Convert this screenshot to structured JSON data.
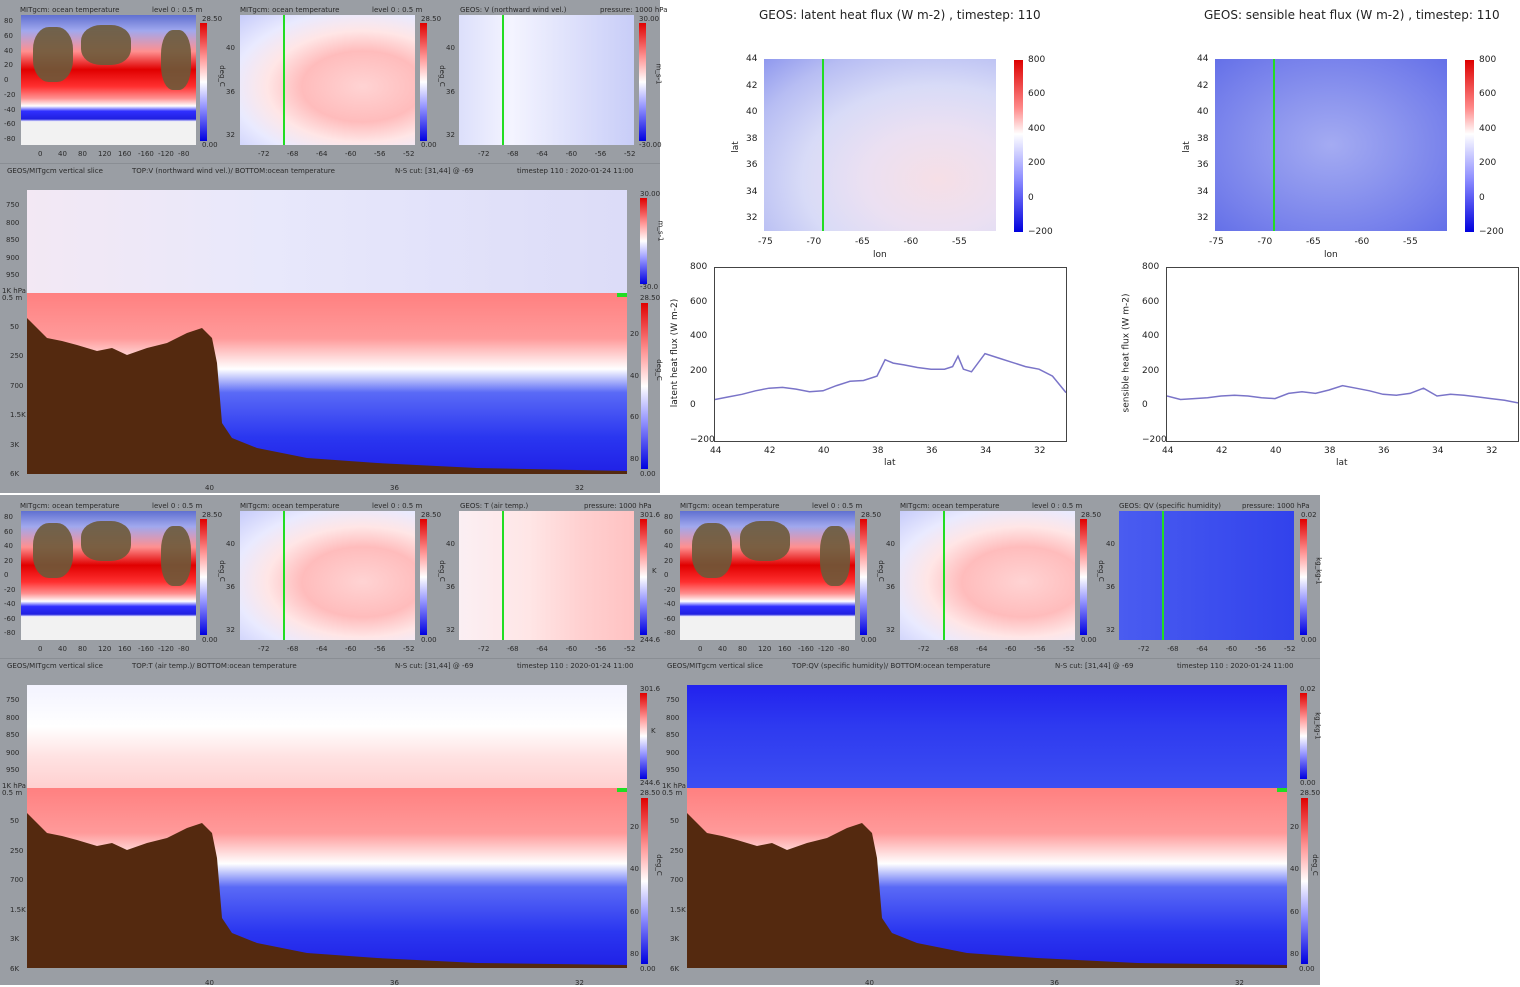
{
  "panels": {
    "top_left": {
      "map1": {
        "title": "MITgcm: ocean temperature",
        "level": "level 0 : 0.5 m",
        "cmax": "28.50",
        "cmin": "0.00",
        "unit": "deg_C",
        "yticks": [
          "80",
          "60",
          "40",
          "20",
          "0",
          "-20",
          "-40",
          "-60",
          "-80"
        ],
        "xticks": [
          "0",
          "40",
          "80",
          "120",
          "160",
          "-160",
          "-120",
          "-80"
        ]
      },
      "map2": {
        "title": "MITgcm: ocean temperature",
        "level": "level 0 : 0.5 m",
        "cmax": "28.50",
        "cmin": "0.00",
        "unit": "deg_C",
        "yticks": [
          "40",
          "36",
          "32"
        ],
        "xticks": [
          "-72",
          "-68",
          "-64",
          "-60",
          "-56",
          "-52"
        ]
      },
      "map3": {
        "title": "GEOS: V (northward wind vel.)",
        "level": "pressure: 1000 hPa",
        "cmax": "30.00",
        "cmin": "-30.00",
        "unit": "m_s-1",
        "yticks": [
          "40",
          "36",
          "32"
        ],
        "xticks": [
          "-72",
          "-68",
          "-64",
          "-60",
          "-56",
          "-52"
        ]
      },
      "slice": {
        "left": "GEOS/MITgcm vertical slice",
        "mid": "TOP:V (northward wind vel.)/ BOTTOM:ocean temperature",
        "cut": "N-S cut: [31,44] @ -69",
        "time": "timestep 110 : 2020-01-24 11:00",
        "ptick": [
          "750",
          "800",
          "850",
          "900",
          "950"
        ],
        "ptop": "1K hPa",
        "dtop": "0.5 m",
        "dticks": [
          "50",
          "250",
          "700",
          "1.5K",
          "3K",
          "6K"
        ],
        "xticks": [
          "40",
          "36",
          "32"
        ],
        "acmax": "30.00",
        "acmin": "-30.0",
        "aunit": "m_s-1",
        "ocmax": "28.50",
        "ocmin": "0.00",
        "ounit": "deg_C",
        "ocbticks": [
          "20",
          "40",
          "60",
          "80"
        ]
      }
    },
    "bottom_left": {
      "map1": {
        "title": "MITgcm: ocean temperature",
        "level": "level 0 : 0.5 m",
        "cmax": "28.50",
        "cmin": "0.00",
        "unit": "deg_C",
        "yticks": [
          "80",
          "60",
          "40",
          "20",
          "0",
          "-20",
          "-40",
          "-60",
          "-80"
        ],
        "xticks": [
          "0",
          "40",
          "80",
          "120",
          "160",
          "-160",
          "-120",
          "-80"
        ]
      },
      "map2": {
        "title": "MITgcm: ocean temperature",
        "level": "level 0 : 0.5 m",
        "cmax": "28.50",
        "cmin": "0.00",
        "unit": "deg_C",
        "yticks": [
          "40",
          "36",
          "32"
        ],
        "xticks": [
          "-72",
          "-68",
          "-64",
          "-60",
          "-56",
          "-52"
        ]
      },
      "map3": {
        "title": "GEOS: T (air temp.)",
        "level": "pressure: 1000 hPa",
        "cmax": "301.6",
        "cmin": "244.6",
        "unit": "K",
        "yticks": [
          "40",
          "36",
          "32"
        ],
        "xticks": [
          "-72",
          "-68",
          "-64",
          "-60",
          "-56",
          "-52"
        ]
      },
      "slice": {
        "left": "GEOS/MITgcm vertical slice",
        "mid": "TOP:T (air temp.)/ BOTTOM:ocean temperature",
        "cut": "N-S cut: [31,44] @ -69",
        "time": "timestep 110 : 2020-01-24 11:00",
        "ptick": [
          "750",
          "800",
          "850",
          "900",
          "950"
        ],
        "ptop": "1K hPa",
        "dtop": "0.5 m",
        "dticks": [
          "50",
          "250",
          "700",
          "1.5K",
          "3K",
          "6K"
        ],
        "xticks": [
          "40",
          "36",
          "32"
        ],
        "acmax": "301.6",
        "acmin": "244.6",
        "aunit": "K",
        "ocmax": "28.50",
        "ocmin": "0.00",
        "ounit": "deg_C",
        "ocbticks": [
          "20",
          "40",
          "60",
          "80"
        ]
      }
    },
    "bottom_right": {
      "map1": {
        "title": "MITgcm: ocean temperature",
        "level": "level 0 : 0.5 m",
        "cmax": "28.50",
        "cmin": "0.00",
        "unit": "deg_C",
        "yticks": [
          "80",
          "60",
          "40",
          "20",
          "0",
          "-20",
          "-40",
          "-60",
          "-80"
        ],
        "xticks": [
          "0",
          "40",
          "80",
          "120",
          "160",
          "-160",
          "-120",
          "-80"
        ]
      },
      "map2": {
        "title": "MITgcm: ocean temperature",
        "level": "level 0 : 0.5 m",
        "cmax": "28.50",
        "cmin": "0.00",
        "unit": "deg_C",
        "yticks": [
          "40",
          "36",
          "32"
        ],
        "xticks": [
          "-72",
          "-68",
          "-64",
          "-60",
          "-56",
          "-52"
        ]
      },
      "map3": {
        "title": "GEOS: QV (specific humidity)",
        "level": "pressure: 1000 hPa",
        "cmax": "0.02",
        "cmin": "0.00",
        "unit": "kg_kg-1",
        "yticks": [
          "40",
          "36",
          "32"
        ],
        "xticks": [
          "-72",
          "-68",
          "-64",
          "-60",
          "-56",
          "-52"
        ]
      },
      "slice": {
        "left": "GEOS/MITgcm vertical slice",
        "mid": "TOP:QV (specific humidity)/ BOTTOM:ocean temperature",
        "cut": "N-S cut: [31,44] @ -69",
        "time": "timestep 110 : 2020-01-24 11:00",
        "ptick": [
          "750",
          "800",
          "850",
          "900",
          "950"
        ],
        "ptop": "1K hPa",
        "dtop": "0.5 m",
        "dticks": [
          "50",
          "250",
          "700",
          "1.5K",
          "3K",
          "6K"
        ],
        "xticks": [
          "40",
          "36",
          "32"
        ],
        "acmax": "0.02",
        "acmin": "0.00",
        "aunit": "kg_kg-1",
        "ocmax": "28.50",
        "ocmin": "0.00",
        "ounit": "deg_C",
        "ocbticks": [
          "20",
          "40",
          "60",
          "80"
        ]
      }
    }
  },
  "chart_data": [
    {
      "type": "heatmap",
      "id": "latent_map",
      "title": "GEOS: latent heat flux (W m-2) , timestep: 110",
      "xlabel": "lon",
      "ylabel": "lat",
      "xticks": [
        "-75",
        "-70",
        "-65",
        "-60",
        "-55"
      ],
      "yticks": [
        "44",
        "42",
        "40",
        "38",
        "36",
        "34",
        "32"
      ],
      "colorbar_ticks": [
        "800",
        "600",
        "400",
        "200",
        "0",
        "−200"
      ]
    },
    {
      "type": "heatmap",
      "id": "sensible_map",
      "title": "GEOS: sensible heat flux (W m-2) , timestep: 110",
      "xlabel": "lon",
      "ylabel": "lat",
      "xticks": [
        "-75",
        "-70",
        "-65",
        "-60",
        "-55"
      ],
      "yticks": [
        "44",
        "42",
        "40",
        "38",
        "36",
        "34",
        "32"
      ],
      "colorbar_ticks": [
        "800",
        "600",
        "400",
        "200",
        "0",
        "−200"
      ]
    },
    {
      "type": "line",
      "id": "latent_line",
      "xlabel": "lat",
      "ylabel": "latent heat flux (W m-2)",
      "xlim": [
        44,
        31
      ],
      "ylim": [
        -200,
        800
      ],
      "xticks": [
        "44",
        "42",
        "40",
        "38",
        "36",
        "34",
        "32"
      ],
      "yticks": [
        "800",
        "600",
        "400",
        "200",
        "0",
        "−200"
      ],
      "series": [
        {
          "x": [
            44,
            43.5,
            43,
            42.5,
            42,
            41.5,
            41,
            40.5,
            40,
            39.5,
            39,
            38.5,
            38,
            37.7,
            37.4,
            37,
            36.5,
            36,
            35.5,
            35.2,
            35,
            34.8,
            34.5,
            34,
            33.5,
            33,
            32.5,
            32,
            31.5,
            31
          ],
          "y": [
            40,
            55,
            70,
            90,
            105,
            110,
            100,
            85,
            90,
            120,
            145,
            150,
            175,
            270,
            250,
            240,
            225,
            215,
            215,
            230,
            290,
            215,
            200,
            305,
            280,
            255,
            230,
            215,
            175,
            80
          ]
        }
      ]
    },
    {
      "type": "line",
      "id": "sensible_line",
      "xlabel": "lat",
      "ylabel": "sensible heat flux (W m-2)",
      "xlim": [
        44,
        31
      ],
      "ylim": [
        -200,
        800
      ],
      "xticks": [
        "44",
        "42",
        "40",
        "38",
        "36",
        "34",
        "32"
      ],
      "yticks": [
        "800",
        "600",
        "400",
        "200",
        "0",
        "−200"
      ],
      "series": [
        {
          "x": [
            44,
            43.5,
            43,
            42.5,
            42,
            41.5,
            41,
            40.5,
            40,
            39.5,
            39,
            38.5,
            38,
            37.5,
            37,
            36.5,
            36,
            35.5,
            35,
            34.5,
            34,
            33.5,
            33,
            32.5,
            32,
            31.5,
            31
          ],
          "y": [
            60,
            40,
            45,
            50,
            60,
            65,
            60,
            50,
            45,
            75,
            85,
            75,
            95,
            120,
            105,
            90,
            70,
            65,
            75,
            105,
            60,
            70,
            65,
            55,
            45,
            35,
            20
          ]
        }
      ]
    }
  ]
}
